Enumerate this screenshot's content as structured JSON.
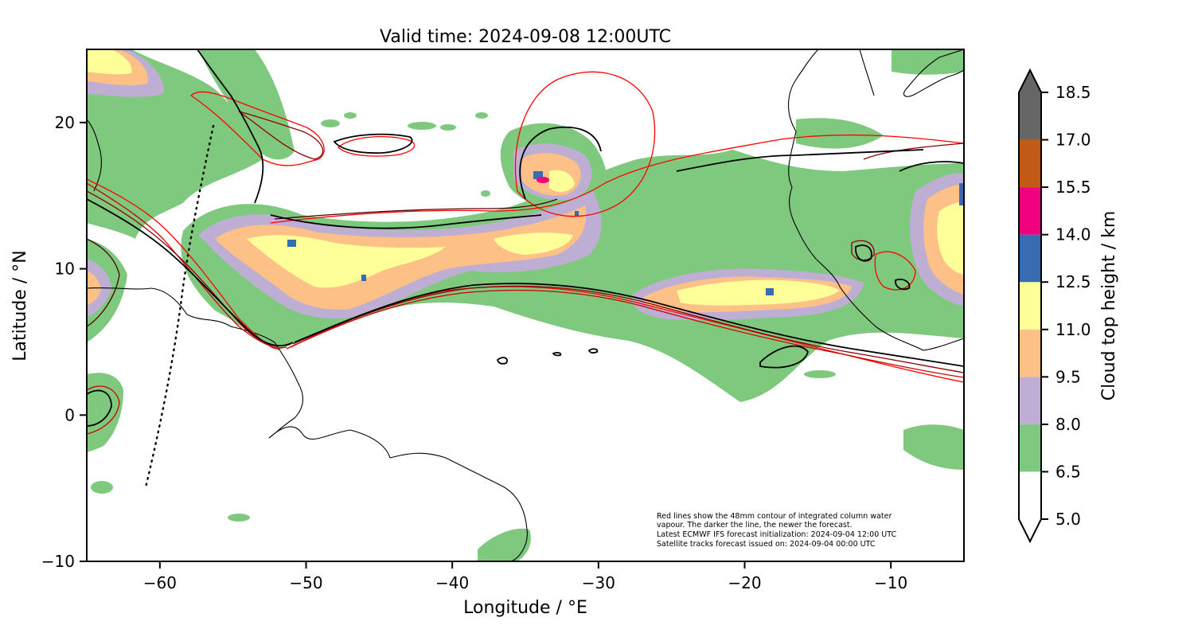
{
  "title": "Valid time: 2024-09-08 12:00UTC",
  "axes": {
    "xlabel": "Longitude / °E",
    "ylabel": "Latitude / °N",
    "xlim": [
      -65,
      -5
    ],
    "ylim": [
      -10,
      25
    ],
    "xticks": [
      {
        "value": -60,
        "label": "−60"
      },
      {
        "value": -50,
        "label": "−50"
      },
      {
        "value": -40,
        "label": "−40"
      },
      {
        "value": -30,
        "label": "−30"
      },
      {
        "value": -20,
        "label": "−20"
      },
      {
        "value": -10,
        "label": "−10"
      }
    ],
    "yticks": [
      {
        "value": -10,
        "label": "−10"
      },
      {
        "value": 0,
        "label": "0"
      },
      {
        "value": 10,
        "label": "10"
      },
      {
        "value": 20,
        "label": "20"
      }
    ]
  },
  "notes": [
    "Red lines show the 48mm contour of integrated column water",
    "vapour. The darker the line, the newer the forecast.",
    "Latest ECMWF IFS forecast initialization: 2024-09-04 12:00 UTC",
    "Satellite tracks forecast issued on: 2024-09-04 00:00 UTC"
  ],
  "colorbar": {
    "label": "Cloud top height / km",
    "levels": [
      {
        "value": 5.0,
        "label": "5.0"
      },
      {
        "value": 6.5,
        "label": "6.5"
      },
      {
        "value": 8.0,
        "label": "8.0"
      },
      {
        "value": 9.5,
        "label": "9.5"
      },
      {
        "value": 11.0,
        "label": "11.0"
      },
      {
        "value": 12.5,
        "label": "12.5"
      },
      {
        "value": 14.0,
        "label": "14.0"
      },
      {
        "value": 15.5,
        "label": "15.5"
      },
      {
        "value": 17.0,
        "label": "17.0"
      },
      {
        "value": 18.5,
        "label": "18.5"
      }
    ],
    "colors": [
      "#ffffff",
      "#7fc97f",
      "#beaed4",
      "#fdc086",
      "#ffff99",
      "#386cb0",
      "#f0027f",
      "#bf5b17",
      "#666666"
    ],
    "under_color": "#ffffff",
    "over_color": "#666666"
  },
  "map_style": {
    "coastline_color": "#000000",
    "iwv_contour_colors": [
      "#ff0000",
      "#cc0000",
      "#8b0000",
      "#4a0000",
      "#000000"
    ],
    "satellite_track_style": "dotted"
  }
}
